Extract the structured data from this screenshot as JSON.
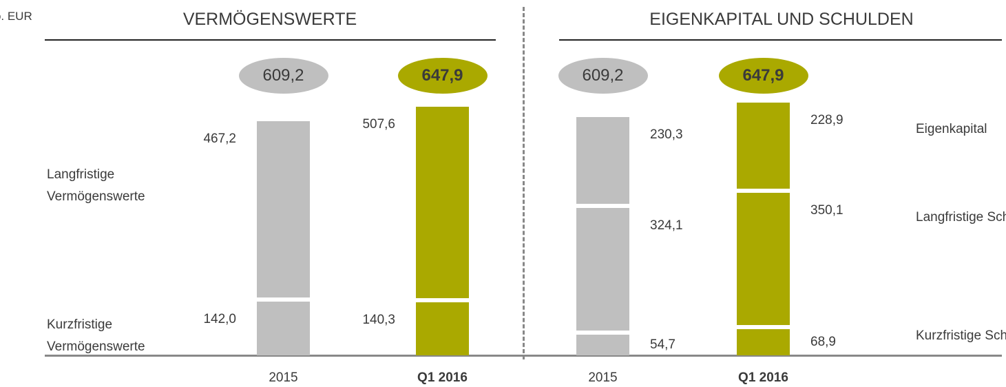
{
  "unit": "Mio. EUR",
  "chart_data": [
    {
      "type": "bar",
      "stacked": true,
      "title": "VERMÖGENSWERTE",
      "categories": [
        "2015",
        "Q1 2016"
      ],
      "colors": [
        "#bfbfbf",
        "#aaa900"
      ],
      "label_side": "left",
      "totals": [
        609.2,
        647.9
      ],
      "totals_labels": [
        "609,2",
        "647,9"
      ],
      "series": [
        {
          "name": "Kurzfristige Vermögenswerte",
          "values": [
            142.0,
            140.3
          ],
          "value_labels": [
            "142,0",
            "140,3"
          ]
        },
        {
          "name": "Langfristige Vermögenswerte",
          "values": [
            467.2,
            507.6
          ],
          "value_labels": [
            "467,2",
            "507,6"
          ]
        }
      ]
    },
    {
      "type": "bar",
      "stacked": true,
      "title": "EIGENKAPITAL UND SCHULDEN",
      "categories": [
        "2015",
        "Q1 2016"
      ],
      "colors": [
        "#bfbfbf",
        "#aaa900"
      ],
      "label_side": "right",
      "totals": [
        609.2,
        647.9
      ],
      "totals_labels": [
        "609,2",
        "647,9"
      ],
      "series": [
        {
          "name": "Kurzfristige Schulden",
          "values": [
            54.7,
            68.9
          ],
          "value_labels": [
            "54,7",
            "68,9"
          ]
        },
        {
          "name": "Langfristige Schulden",
          "values": [
            324.1,
            350.1
          ],
          "value_labels": [
            "324,1",
            "350,1"
          ]
        },
        {
          "name": "Eigenkapital",
          "values": [
            230.3,
            228.9
          ],
          "value_labels": [
            "230,3",
            "228,9"
          ]
        }
      ]
    }
  ]
}
